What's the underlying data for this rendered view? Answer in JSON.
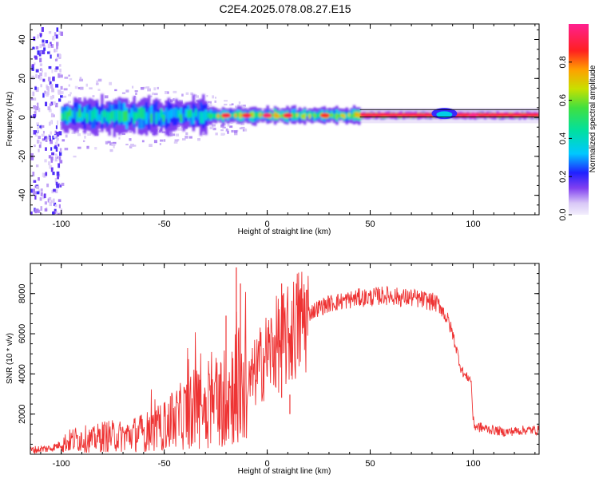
{
  "title": "C2E4.2025.078.08.27.E15",
  "chart_data": [
    {
      "type": "heatmap",
      "xlabel": "Height of straight line (km)",
      "ylabel": "Frequency (Hz)",
      "xlim": [
        -115,
        132
      ],
      "ylim": [
        -50,
        48
      ],
      "xticks": [
        -100,
        -50,
        0,
        50,
        100
      ],
      "yticks": [
        -40,
        -20,
        0,
        20,
        40
      ],
      "colorbar": {
        "label": "Normalized spectral amplitude",
        "range": [
          0,
          1
        ],
        "ticks": [
          "0.0",
          "0.2",
          "0.4",
          "0.6",
          "0.8"
        ],
        "tick_values": [
          0,
          0.2,
          0.4,
          0.6,
          0.8
        ]
      },
      "regions": [
        {
          "x": [
            -115,
            -100
          ],
          "freq": [
            -50,
            48
          ],
          "amplitude": 0.18
        },
        {
          "x": [
            -100,
            -30
          ],
          "freq": [
            -6,
            8
          ],
          "amplitude": 0.45
        },
        {
          "x": [
            -30,
            45
          ],
          "freq": [
            -3,
            4
          ],
          "amplitude": 0.6
        },
        {
          "x": [
            45,
            132
          ],
          "freq": [
            0,
            3
          ],
          "amplitude": 0.9
        },
        {
          "x": [
            80,
            92
          ],
          "freq": [
            -2,
            6
          ],
          "amplitude": 0.35
        }
      ],
      "ridge_hz": 1,
      "grid": false
    },
    {
      "type": "line",
      "xlabel": "Height of straight line (km)",
      "ylabel": "SNR (10 * v/v)",
      "xlim": [
        -115,
        132
      ],
      "ylim": [
        0,
        9500
      ],
      "xticks": [
        -100,
        -50,
        0,
        50,
        100
      ],
      "yticks": [
        2000,
        4000,
        6000,
        8000
      ],
      "color": "#ee3333",
      "series": [
        {
          "x": [
            -115,
            -105,
            -100,
            -95,
            -90,
            -85,
            -80,
            -75,
            -70,
            -65,
            -60,
            -55,
            -50,
            -45,
            -40,
            -35,
            -30,
            -25,
            -20,
            -17,
            -15,
            -13,
            -10,
            -5,
            0,
            5,
            10,
            15,
            20,
            25,
            30,
            35,
            40,
            45,
            50,
            55,
            60,
            65,
            70,
            75,
            80,
            84,
            86,
            88,
            90,
            92,
            94,
            96,
            98,
            99,
            100,
            101,
            105,
            110,
            115,
            120,
            125,
            132
          ],
          "y": [
            200,
            300,
            500,
            700,
            800,
            700,
            900,
            900,
            900,
            1000,
            1100,
            1200,
            1400,
            1700,
            2000,
            2300,
            2400,
            2600,
            2800,
            3200,
            4000,
            3000,
            3200,
            4200,
            5000,
            5500,
            5800,
            6500,
            7000,
            7300,
            7500,
            7600,
            7700,
            7800,
            7800,
            7900,
            7900,
            7800,
            7800,
            7700,
            7600,
            7400,
            7000,
            6600,
            6000,
            5200,
            4300,
            3900,
            3800,
            3700,
            1600,
            1400,
            1300,
            1200,
            1100,
            1150,
            1200,
            1200
          ]
        }
      ],
      "spikes": [
        {
          "x": -15,
          "y": 9300
        },
        {
          "x": -13,
          "y": 8500
        },
        {
          "x": -20,
          "y": 6900
        },
        {
          "x": 7,
          "y": 8500
        },
        {
          "x": 11,
          "y": 2000
        }
      ],
      "grid": false
    }
  ]
}
